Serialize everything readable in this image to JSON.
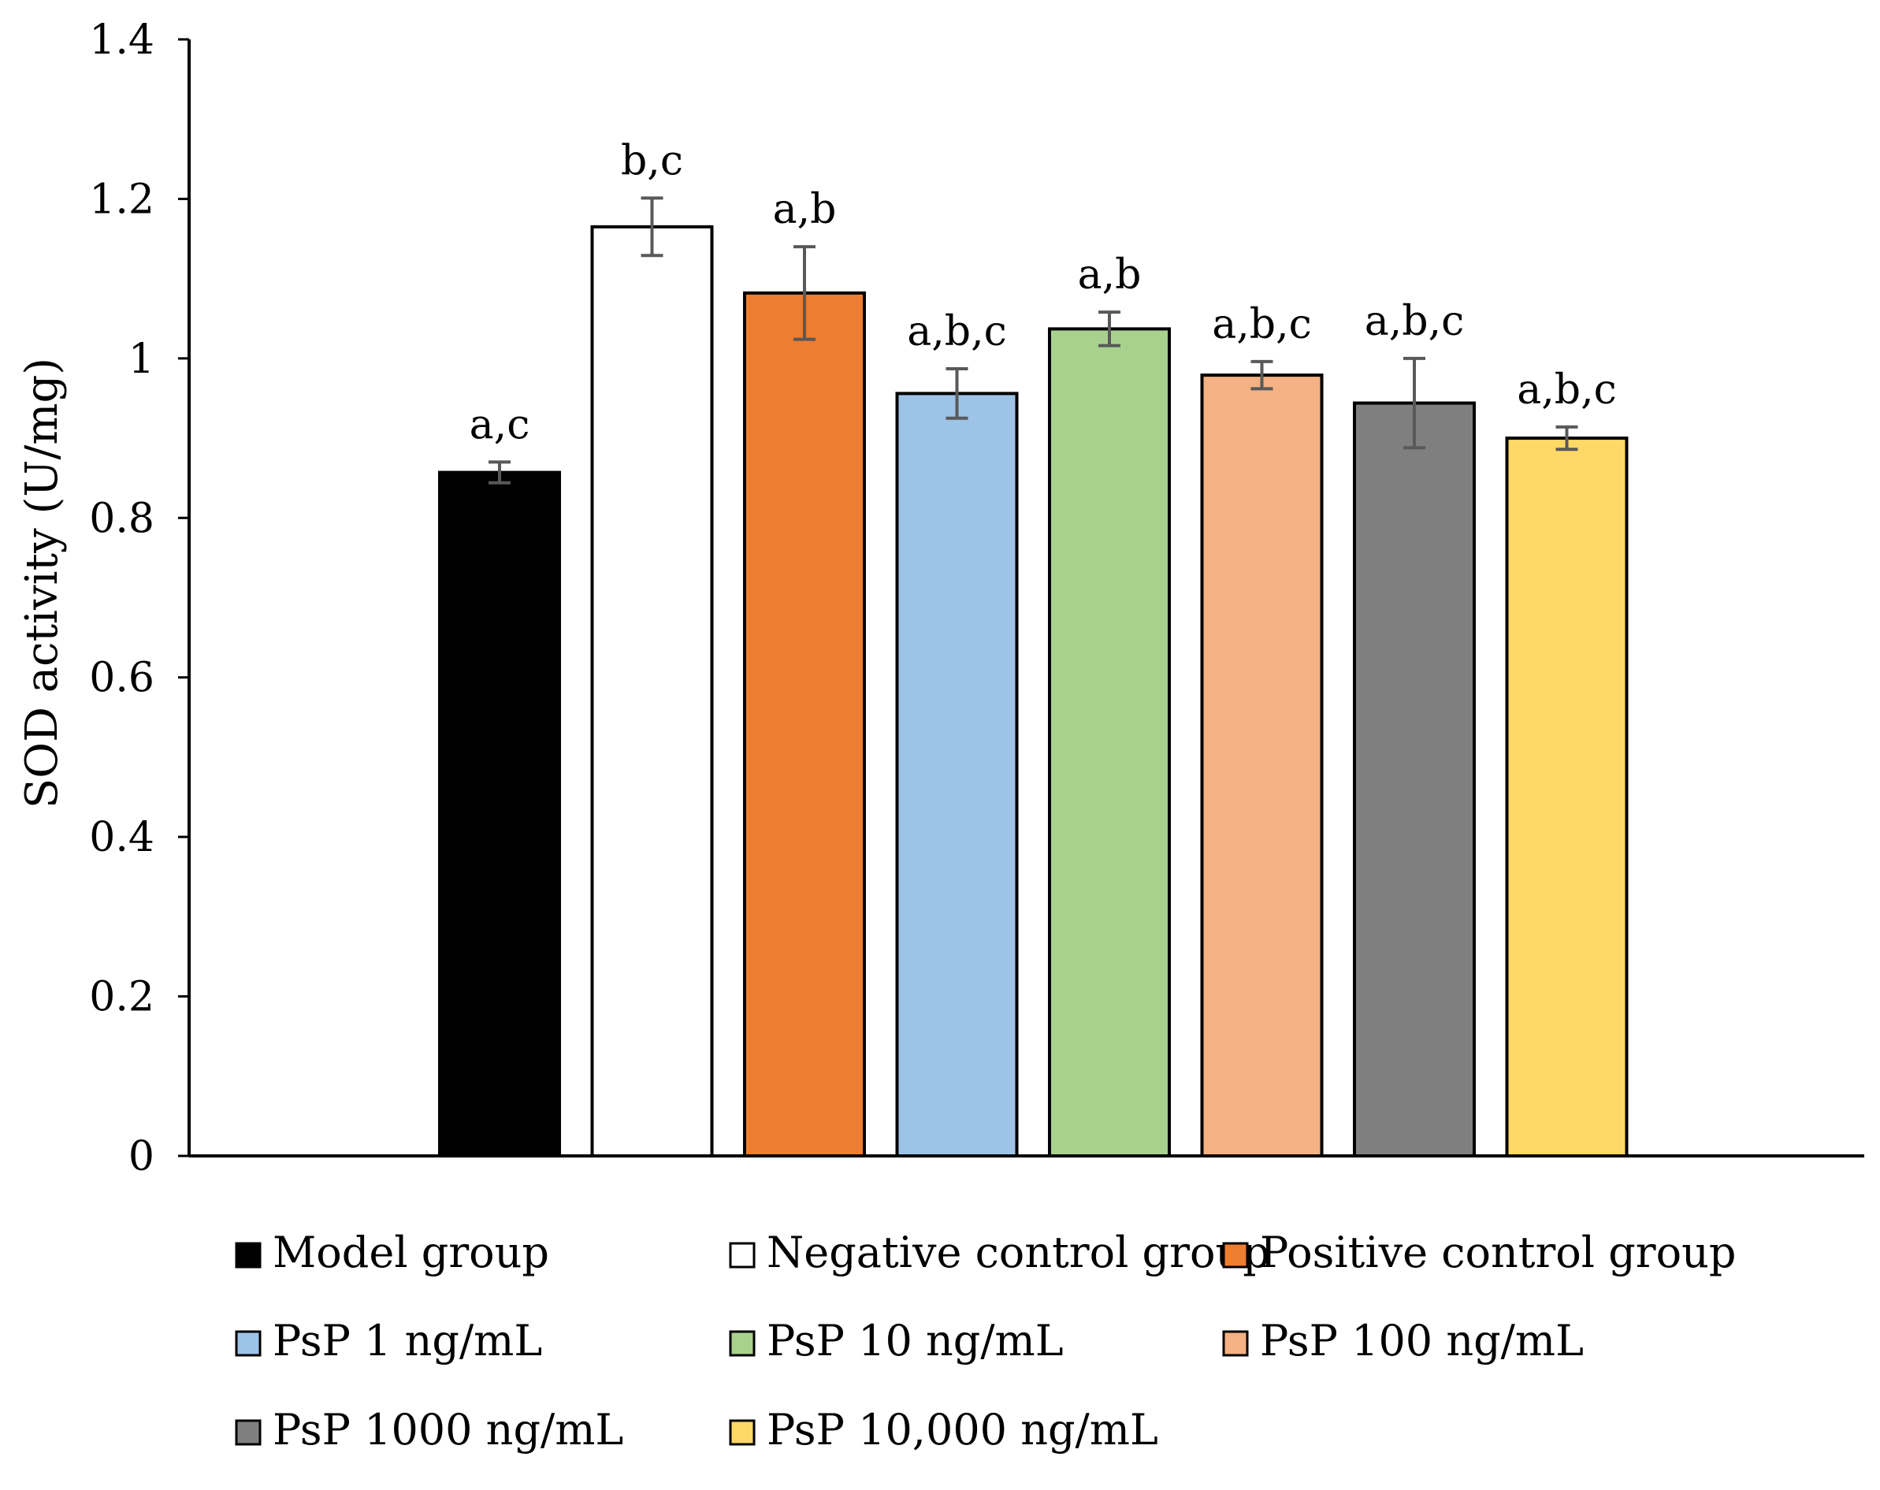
{
  "chart_data": {
    "type": "bar",
    "title": "",
    "xlabel": "",
    "ylabel": "SOD activity (U/mg)",
    "ylim": [
      0,
      1.4
    ],
    "yticks": [
      0,
      0.2,
      0.4,
      0.6,
      0.8,
      1,
      1.2,
      1.4
    ],
    "ytick_labels": [
      "0",
      "0.2",
      "0.4",
      "0.6",
      "0.8",
      "1",
      "1.2",
      "1.4"
    ],
    "gridlines": false,
    "legend_position": "bottom",
    "series": [
      {
        "name": "Model group",
        "value": 0.857,
        "error": 0.013,
        "label": "a,c",
        "color": "#000000"
      },
      {
        "name": "Negative control group",
        "value": 1.165,
        "error": 0.036,
        "label": "b,c",
        "color": "#ffffff"
      },
      {
        "name": "Positive control group",
        "value": 1.082,
        "error": 0.058,
        "label": "a,b",
        "color": "#ed7d31"
      },
      {
        "name": "PsP 1 ng/mL",
        "value": 0.956,
        "error": 0.031,
        "label": "a,b,c",
        "color": "#9dc3e6"
      },
      {
        "name": "PsP 10 ng/mL",
        "value": 1.037,
        "error": 0.021,
        "label": "a,b",
        "color": "#a9d18e"
      },
      {
        "name": "PsP 100 ng/mL",
        "value": 0.979,
        "error": 0.017,
        "label": "a,b,c",
        "color": "#f4b183"
      },
      {
        "name": "PsP 1000 ng/mL",
        "value": 0.944,
        "error": 0.056,
        "label": "a,b,c",
        "color": "#7f7f7f"
      },
      {
        "name": "PsP 10,000 ng/mL",
        "value": 0.9,
        "error": 0.014,
        "label": "a,b,c",
        "color": "#ffd966"
      }
    ]
  }
}
